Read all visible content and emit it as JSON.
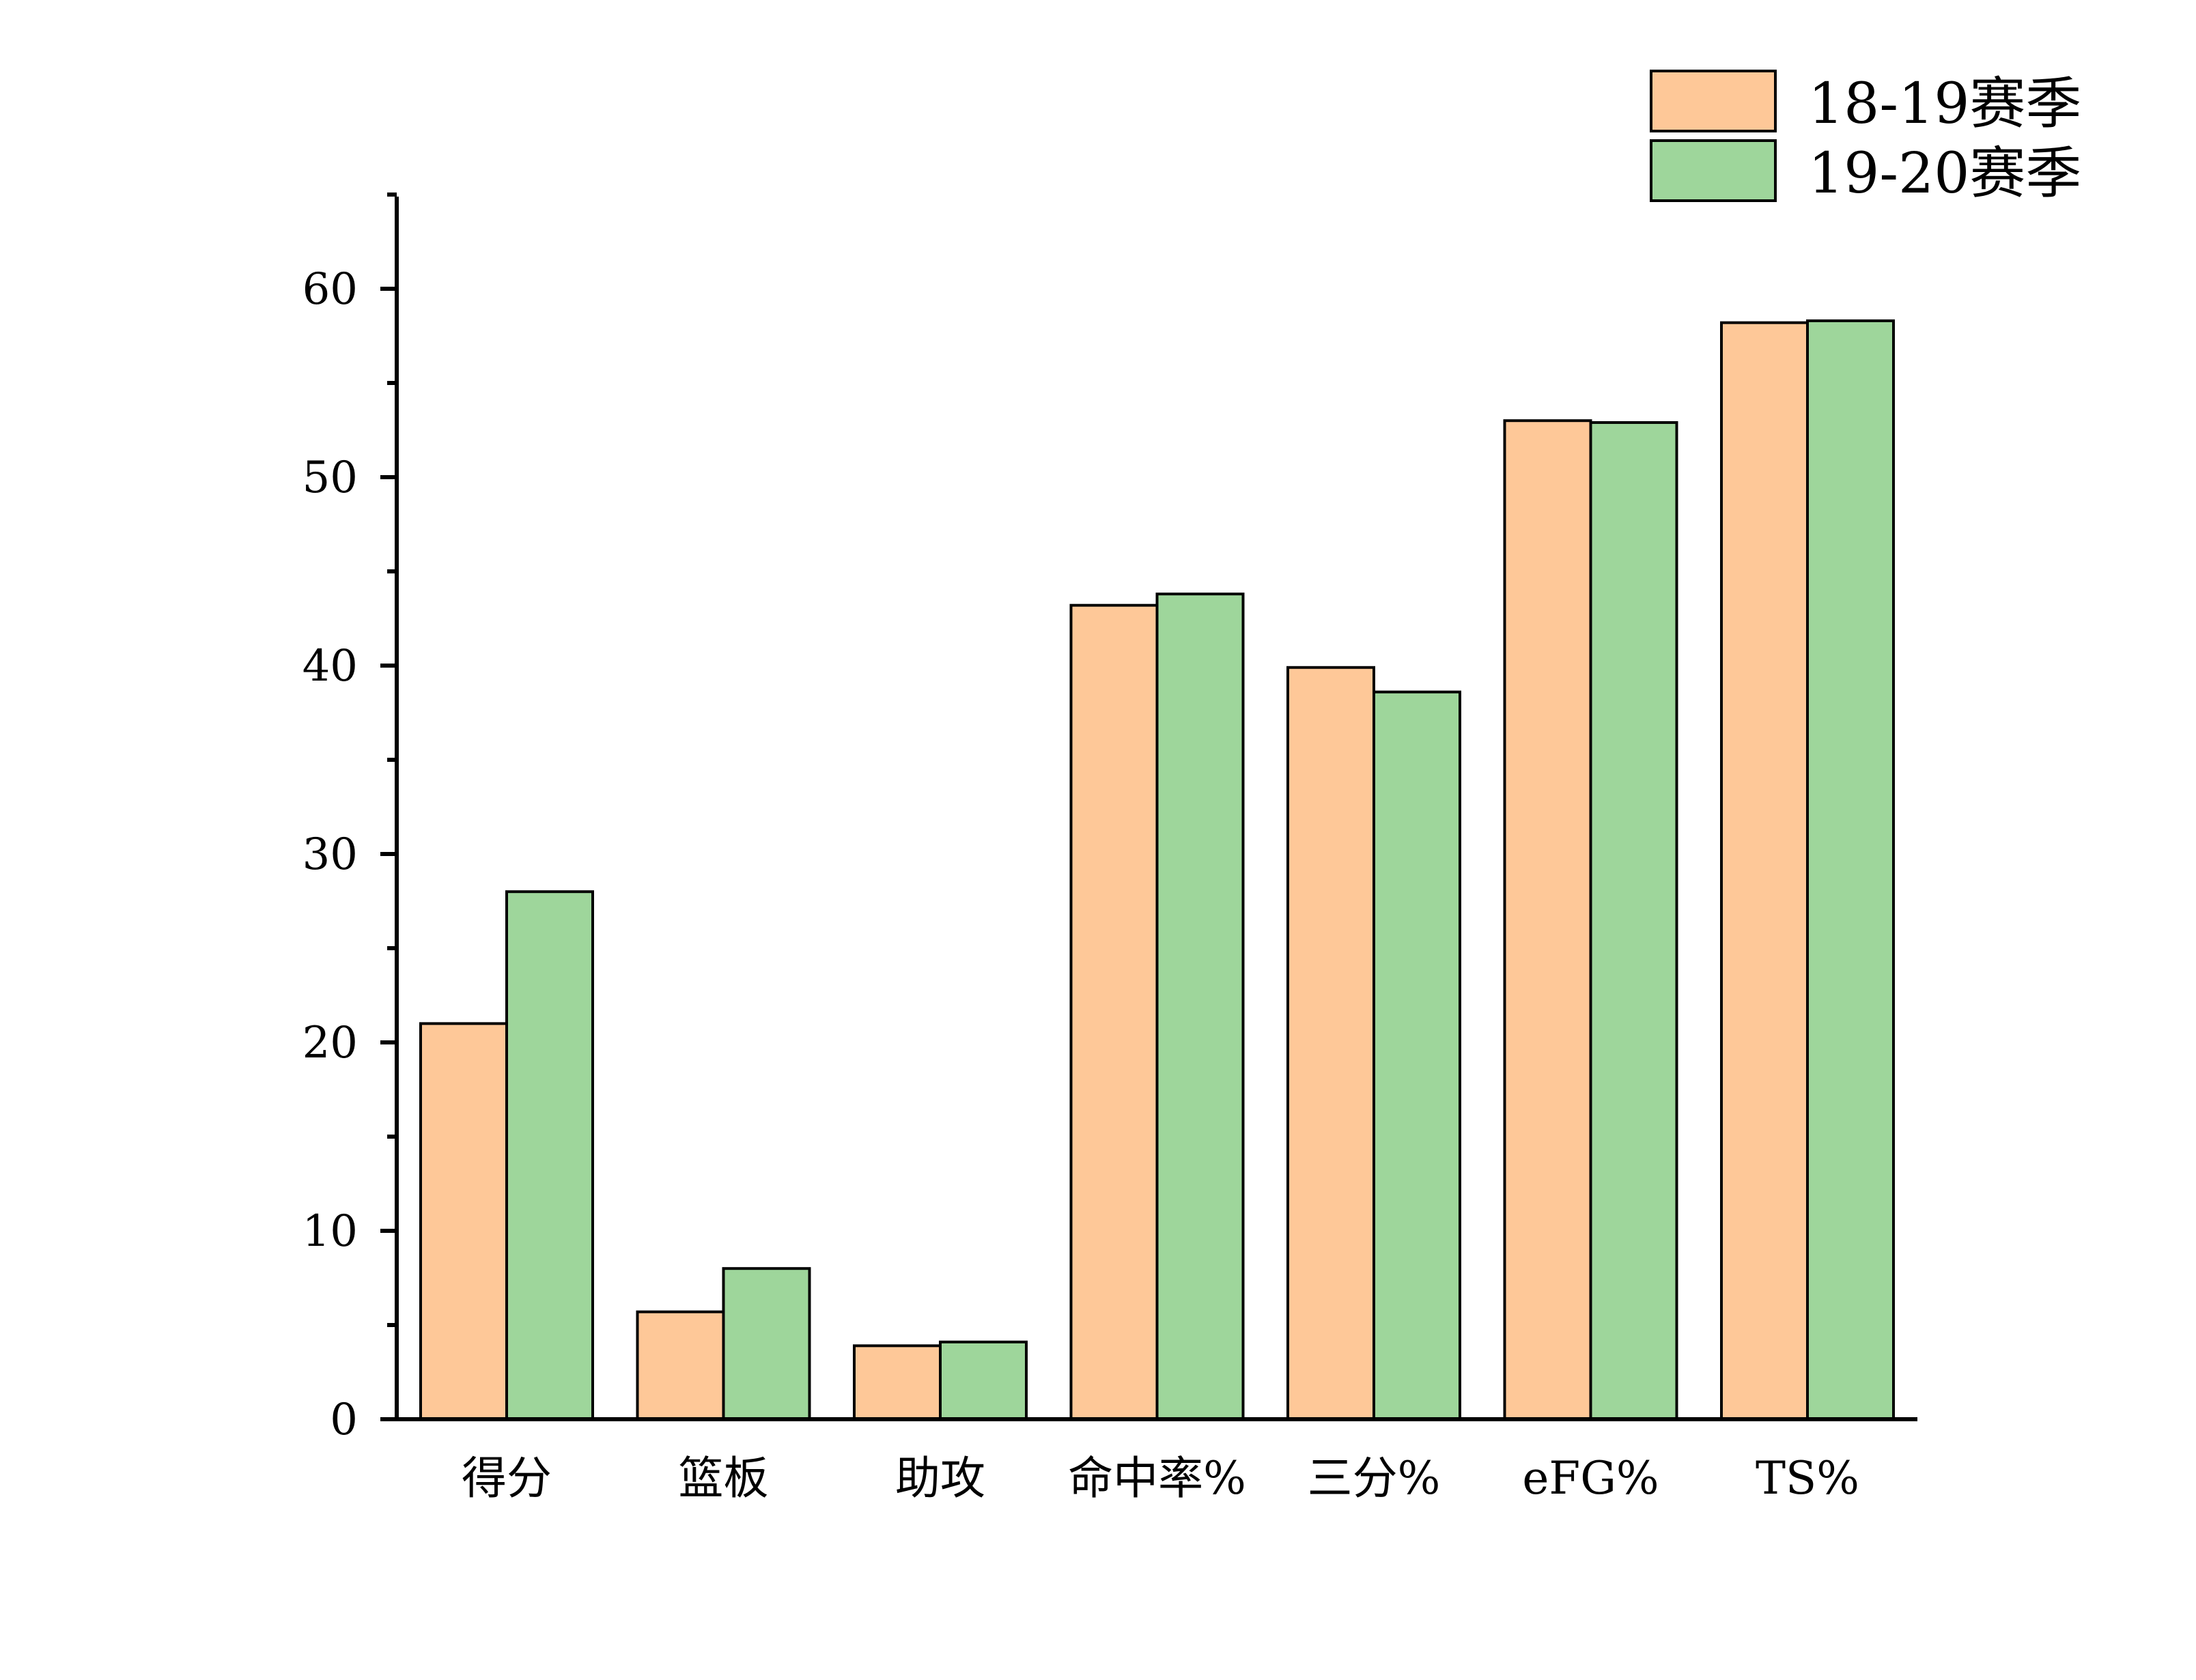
{
  "chart_data": {
    "type": "bar",
    "categories": [
      "得分",
      "篮板",
      "助攻",
      "命中率%",
      "三分%",
      "eFG%",
      "TS%"
    ],
    "series": [
      {
        "name": "18-19赛季",
        "color": "#FEC898",
        "values": [
          21.0,
          5.7,
          3.9,
          43.2,
          39.9,
          53.0,
          58.2
        ]
      },
      {
        "name": "19-20赛季",
        "color": "#9ED69B",
        "values": [
          28.0,
          8.0,
          4.1,
          43.8,
          38.6,
          52.9,
          58.3
        ]
      }
    ],
    "y_ticks": [
      "0",
      "10",
      "20",
      "30",
      "40",
      "50",
      "60"
    ],
    "ylim": [
      0,
      65
    ],
    "legend_position": "top-right",
    "grid": false
  }
}
